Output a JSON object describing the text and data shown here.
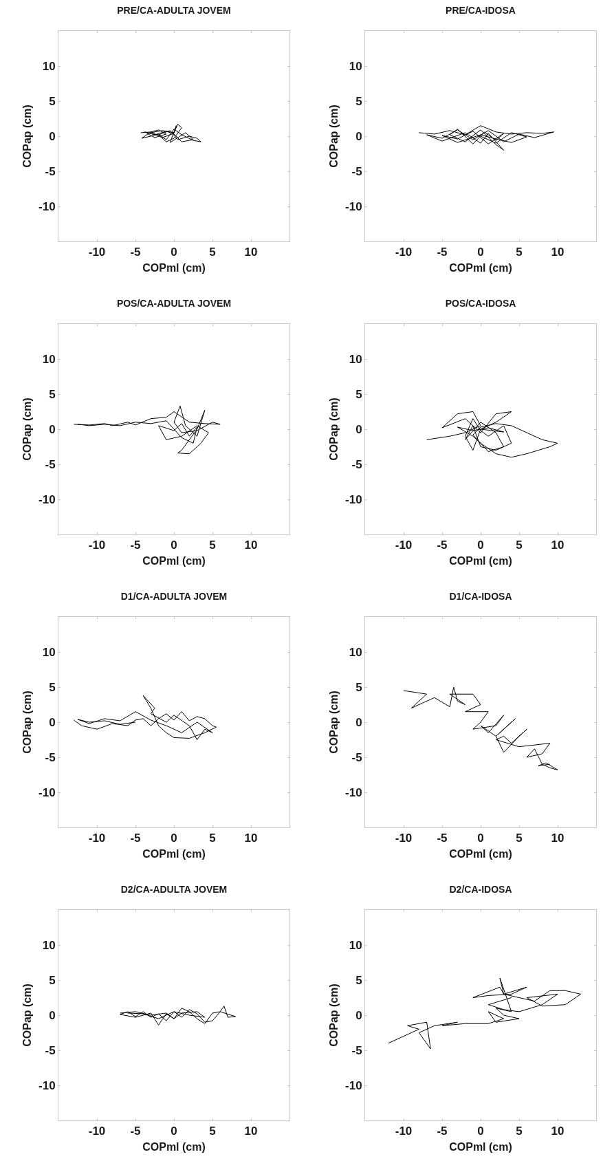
{
  "chart_data": [
    {
      "type": "line",
      "title": "PRE/CA-ADULTA JOVEM",
      "xlabel": "COPml (cm)",
      "ylabel": "COPap (cm)",
      "xlim": [
        -15,
        15
      ],
      "ylim": [
        -15,
        15
      ],
      "xticks": [
        -10,
        -5,
        0,
        5,
        10
      ],
      "yticks": [
        -10,
        -5,
        0,
        5,
        10
      ],
      "grid": false,
      "series": [
        {
          "color": "#000000",
          "x": [
            -4.3,
            -3,
            -2,
            -1,
            -2.5,
            -3.5,
            -1.5,
            0,
            0.5,
            1,
            0,
            -1,
            -2,
            -0.5,
            0.5,
            2,
            3,
            3.5,
            2.5,
            1,
            0,
            -1,
            -2,
            -3,
            -4.2,
            -3,
            -1.5,
            0,
            0.3,
            -0.5,
            1.5,
            2.5,
            1,
            0,
            -1,
            -2.5,
            -3.8,
            -2
          ],
          "values": [
            0.5,
            0.6,
            0.9,
            0.3,
            -0.2,
            0.4,
            0.8,
            0.5,
            1.7,
            1.2,
            -0.3,
            -0.8,
            0.2,
            0.8,
            -0.5,
            0,
            -0.3,
            -0.8,
            -0.6,
            0.2,
            1,
            -0.5,
            0.3,
            0,
            -0.3,
            0.6,
            -0.2,
            0.4,
            1.5,
            -0.9,
            0.5,
            -0.5,
            -0.8,
            0.3,
            0.7,
            0.2,
            0.6,
            0.1
          ]
        }
      ]
    },
    {
      "type": "line",
      "title": "PRE/CA-IDOSA",
      "xlabel": "COPml (cm)",
      "ylabel": "COPap (cm)",
      "xlim": [
        -15,
        15
      ],
      "ylim": [
        -15,
        15
      ],
      "xticks": [
        -10,
        -5,
        0,
        5,
        10
      ],
      "yticks": [
        -10,
        -5,
        0,
        5,
        10
      ],
      "grid": false,
      "series": [
        {
          "color": "#000000",
          "x": [
            -8,
            -6,
            -4,
            -2,
            0,
            2,
            4,
            6,
            8,
            9.5,
            7,
            5,
            3,
            1,
            -1,
            -3,
            -5,
            -7,
            -5,
            -2,
            0,
            1,
            3,
            2,
            0,
            -2,
            -4,
            -3,
            -1,
            0.5,
            2,
            3,
            1,
            -1,
            -3,
            -5,
            -3,
            0,
            2,
            4,
            6,
            4,
            2,
            0
          ],
          "values": [
            0.5,
            0.3,
            0.8,
            0.2,
            1.5,
            0.6,
            0.3,
            0.5,
            0.4,
            0.6,
            -0.2,
            0.3,
            -0.8,
            0.8,
            -0.5,
            0.9,
            -0.3,
            0.2,
            -0.7,
            0.5,
            -1,
            0.4,
            -2,
            -1.2,
            0.9,
            -0.8,
            0.2,
            1,
            -1.1,
            0.6,
            -0.6,
            0.4,
            -1.1,
            0.7,
            -0.4,
            0.1,
            -0.9,
            0.2,
            -0.4,
            -0.9,
            -0.1,
            0.5,
            -1,
            0
          ]
        }
      ]
    },
    {
      "type": "line",
      "title": "POS/CA-ADULTA JOVEM",
      "xlabel": "COPml (cm)",
      "ylabel": "COPap (cm)",
      "xlim": [
        -15,
        15
      ],
      "ylim": [
        -15,
        15
      ],
      "xticks": [
        -10,
        -5,
        0,
        5,
        10
      ],
      "yticks": [
        -10,
        -5,
        0,
        5,
        10
      ],
      "grid": false,
      "series": [
        {
          "color": "#000000",
          "x": [
            -13,
            -11,
            -9,
            -8,
            -6,
            -5,
            -3,
            -1,
            0,
            2,
            4,
            6,
            5,
            3,
            1,
            0,
            0.8,
            1.5,
            3,
            4,
            3,
            1,
            0.5,
            2,
            3.5,
            4.5,
            3,
            1,
            -1,
            -2,
            0,
            1,
            2,
            3,
            2.5,
            1,
            0,
            -1,
            -3,
            -5,
            -7,
            -9,
            -11,
            -12.5
          ],
          "values": [
            0.7,
            0.6,
            0.8,
            0.5,
            1,
            0.6,
            1.5,
            1.7,
            2.5,
            1,
            0.8,
            0.7,
            1,
            -0.2,
            -0.5,
            1,
            3.3,
            0.5,
            -1,
            2.7,
            0,
            -3,
            -3.4,
            -3.5,
            -2,
            -0.5,
            0.5,
            -1,
            -1.5,
            0.5,
            -0.2,
            0.8,
            -1,
            0.3,
            -2,
            -1.2,
            0,
            1.2,
            0.8,
            1,
            0.5,
            0.7,
            0.5,
            0.7
          ]
        }
      ]
    },
    {
      "type": "line",
      "title": "POS/CA-IDOSA",
      "xlabel": "COPml (cm)",
      "ylabel": "COPap (cm)",
      "xlim": [
        -15,
        15
      ],
      "ylim": [
        -15,
        15
      ],
      "xticks": [
        -10,
        -5,
        0,
        5,
        10
      ],
      "yticks": [
        -10,
        -5,
        0,
        5,
        10
      ],
      "grid": false,
      "series": [
        {
          "color": "#000000",
          "x": [
            -7,
            -4,
            -2,
            0,
            -1,
            -3,
            -5,
            -2,
            0,
            2,
            4,
            2,
            0,
            -1,
            -2,
            -1,
            0,
            1,
            3,
            4,
            2,
            0,
            -1,
            -2,
            0,
            2,
            3,
            1,
            -1,
            0,
            2,
            4,
            6,
            8,
            10,
            9,
            6,
            4,
            2,
            0,
            -1,
            -3,
            -1,
            1,
            3,
            0
          ],
          "values": [
            -1.5,
            -1,
            -0.5,
            0.5,
            2.5,
            2.2,
            0.2,
            1.5,
            -0.5,
            2.2,
            2.5,
            1,
            0,
            -3,
            -1,
            1.5,
            -0.2,
            -1,
            0.5,
            -2,
            -3,
            -2.5,
            0.5,
            -1.5,
            1,
            -0.5,
            -2.5,
            -3.2,
            -0.8,
            0.3,
            0.8,
            0.5,
            -0.5,
            -1.5,
            -2,
            -2.5,
            -3.5,
            -4,
            -3.5,
            -2,
            -1,
            0.3,
            -0.2,
            0.2,
            -0.4,
            0
          ]
        }
      ]
    },
    {
      "type": "line",
      "title": "D1/CA-ADULTA JOVEM",
      "xlabel": "COPml (cm)",
      "ylabel": "COPap (cm)",
      "xlim": [
        -15,
        15
      ],
      "ylim": [
        -15,
        15
      ],
      "xticks": [
        -10,
        -5,
        0,
        5,
        10
      ],
      "yticks": [
        -10,
        -5,
        0,
        5,
        10
      ],
      "grid": false,
      "series": [
        {
          "color": "#000000",
          "x": [
            -13,
            -12,
            -10,
            -8,
            -6,
            -5,
            -4,
            -3,
            -2,
            -1,
            0,
            1,
            2,
            3,
            4,
            5,
            5.5,
            4,
            2,
            0,
            -1,
            -2,
            -3,
            -4,
            -3.5,
            -2.5,
            -3,
            -1,
            0,
            2,
            3,
            4,
            5,
            3,
            1,
            -1,
            -3,
            -5,
            -7,
            -9,
            -11,
            -12.5,
            -11,
            -9,
            -7,
            -5
          ],
          "values": [
            0.3,
            -0.5,
            -1,
            -0.2,
            -0.5,
            0.3,
            0.5,
            -0.5,
            0.5,
            1.2,
            0.3,
            1.5,
            0.2,
            0.8,
            0.5,
            -0.5,
            -0.7,
            -1.5,
            -2.3,
            -2.2,
            -1.5,
            -0.5,
            2,
            3.8,
            3.2,
            2,
            1.2,
            0,
            1,
            -0.5,
            -2.5,
            -1,
            -1.5,
            0,
            -1.5,
            -0.5,
            0.3,
            1.5,
            0.2,
            0.5,
            -0.2,
            0.4,
            0,
            0.2,
            -0.3,
            0
          ]
        }
      ]
    },
    {
      "type": "line",
      "title": "D1/CA-IDOSA",
      "xlabel": "COPml (cm)",
      "ylabel": "COPap (cm)",
      "xlim": [
        -15,
        15
      ],
      "ylim": [
        -15,
        15
      ],
      "xticks": [
        -10,
        -5,
        0,
        5,
        10
      ],
      "yticks": [
        -10,
        -5,
        0,
        5,
        10
      ],
      "grid": false,
      "series": [
        {
          "color": "#000000",
          "x": [
            -10,
            -7,
            -9,
            -6,
            -4,
            -3.5,
            -3,
            -2,
            -4,
            -1,
            0,
            -2,
            1,
            0,
            -1,
            2,
            3,
            1,
            0,
            2,
            4.5,
            2,
            3,
            5,
            6,
            4,
            3,
            2,
            5,
            9,
            8,
            6,
            7,
            8,
            9,
            10,
            8.5,
            7.5,
            9
          ],
          "values": [
            4.5,
            4,
            2,
            3.5,
            2.2,
            5,
            3,
            2.5,
            4,
            4,
            2.5,
            1.5,
            1.5,
            0,
            -1,
            -0.5,
            1,
            -1.5,
            -0.5,
            -2,
            0.5,
            -2,
            -4.3,
            -2,
            -1,
            -3,
            -2,
            -2.5,
            -3.5,
            -3,
            -4.5,
            -5,
            -3.8,
            -6,
            -6.5,
            -6.8,
            -5.8,
            -6.2,
            -6
          ]
        }
      ]
    },
    {
      "type": "line",
      "title": "D2/CA-ADULTA JOVEM",
      "xlabel": "COPml (cm)",
      "ylabel": "COPap (cm)",
      "xlim": [
        -15,
        15
      ],
      "ylim": [
        -15,
        15
      ],
      "xticks": [
        -10,
        -5,
        0,
        5,
        10
      ],
      "yticks": [
        -10,
        -5,
        0,
        5,
        10
      ],
      "grid": false,
      "series": [
        {
          "color": "#000000",
          "x": [
            -7,
            -5,
            -3,
            -1,
            0,
            1,
            2,
            3,
            4,
            5,
            6,
            6.5,
            7,
            8,
            6,
            5,
            4,
            3,
            2,
            1,
            0,
            -1,
            -2,
            -3,
            -4,
            -5,
            -6,
            -7,
            -5,
            -3,
            -2,
            -1,
            0,
            1,
            3,
            4,
            2,
            0,
            -2,
            -4,
            -6
          ],
          "values": [
            0.3,
            0.5,
            0,
            0.3,
            -0.5,
            1,
            0.5,
            -0.5,
            -1.2,
            0.3,
            0.5,
            1.3,
            -0.3,
            -0.2,
            0.5,
            -0.8,
            -1,
            0.2,
            0.8,
            -0.3,
            0.5,
            -0.8,
            0.2,
            -0.3,
            0.5,
            -0.2,
            0.5,
            0.1,
            -0.3,
            0.3,
            -1.4,
            0.2,
            -0.5,
            0.3,
            0.5,
            -0.3,
            0,
            0.5,
            -0.5,
            0.2,
            0.3
          ]
        }
      ]
    },
    {
      "type": "line",
      "title": "D2/CA-IDOSA",
      "xlabel": "COPml (cm)",
      "ylabel": "COPap (cm)",
      "xlim": [
        -15,
        15
      ],
      "ylim": [
        -15,
        15
      ],
      "xticks": [
        -10,
        -5,
        0,
        5,
        10
      ],
      "yticks": [
        -10,
        -5,
        0,
        5,
        10
      ],
      "grid": false,
      "series": [
        {
          "color": "#000000",
          "x": [
            -12,
            -10,
            -8,
            -9.5,
            -7,
            -6.5,
            -8,
            -6,
            -3,
            -5,
            -2,
            1,
            3,
            1,
            2,
            5,
            3,
            2,
            4,
            2.5,
            3,
            2.5,
            -1,
            1,
            4,
            6,
            3,
            5,
            7,
            9,
            11,
            13,
            11,
            8,
            6,
            10,
            8,
            5,
            3,
            1,
            4
          ],
          "values": [
            -4,
            -3,
            -2,
            -1.5,
            -1,
            -4.8,
            -2.5,
            -1.5,
            -1,
            -1.5,
            -1.2,
            -1.2,
            -0.5,
            0.5,
            -1,
            -0.5,
            0,
            1,
            0.5,
            5.3,
            3,
            4,
            2.5,
            2.8,
            3,
            4,
            3,
            2.5,
            2,
            3.5,
            3.5,
            3,
            1.5,
            1.3,
            2.5,
            3,
            1.5,
            0.5,
            0.8,
            1.5,
            2.5
          ]
        }
      ]
    }
  ]
}
